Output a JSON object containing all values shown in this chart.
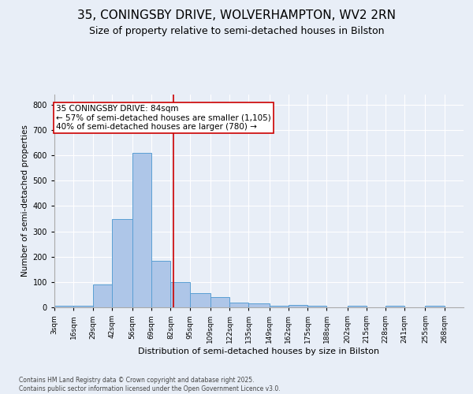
{
  "title1": "35, CONINGSBY DRIVE, WOLVERHAMPTON, WV2 2RN",
  "title2": "Size of property relative to semi-detached houses in Bilston",
  "xlabel": "Distribution of semi-detached houses by size in Bilston",
  "ylabel": "Number of semi-detached properties",
  "bin_labels": [
    "3sqm",
    "16sqm",
    "29sqm",
    "42sqm",
    "56sqm",
    "69sqm",
    "82sqm",
    "95sqm",
    "109sqm",
    "122sqm",
    "135sqm",
    "149sqm",
    "162sqm",
    "175sqm",
    "188sqm",
    "202sqm",
    "215sqm",
    "228sqm",
    "241sqm",
    "255sqm",
    "268sqm"
  ],
  "bin_edges": [
    3,
    16,
    29,
    42,
    56,
    69,
    82,
    95,
    109,
    122,
    135,
    149,
    162,
    175,
    188,
    202,
    215,
    228,
    241,
    255,
    268
  ],
  "bar_heights": [
    5,
    5,
    90,
    350,
    610,
    185,
    100,
    55,
    40,
    20,
    15,
    5,
    10,
    5,
    0,
    5,
    0,
    5,
    0,
    5
  ],
  "bar_color": "#aec6e8",
  "bar_edge_color": "#5a9fd4",
  "property_line_x": 84,
  "property_line_color": "#cc0000",
  "annotation_text": "35 CONINGSBY DRIVE: 84sqm\n← 57% of semi-detached houses are smaller (1,105)\n40% of semi-detached houses are larger (780) →",
  "annotation_box_color": "#ffffff",
  "annotation_box_edge_color": "#cc0000",
  "ylim": [
    0,
    840
  ],
  "yticks": [
    0,
    100,
    200,
    300,
    400,
    500,
    600,
    700,
    800
  ],
  "background_color": "#e8eef7",
  "plot_bg_color": "#e8eef7",
  "footer_text": "Contains HM Land Registry data © Crown copyright and database right 2025.\nContains public sector information licensed under the Open Government Licence v3.0.",
  "title1_fontsize": 11,
  "title2_fontsize": 9,
  "xlabel_fontsize": 8,
  "ylabel_fontsize": 7.5,
  "grid_color": "#ffffff",
  "annotation_fontsize": 7.5,
  "footer_fontsize": 5.5
}
